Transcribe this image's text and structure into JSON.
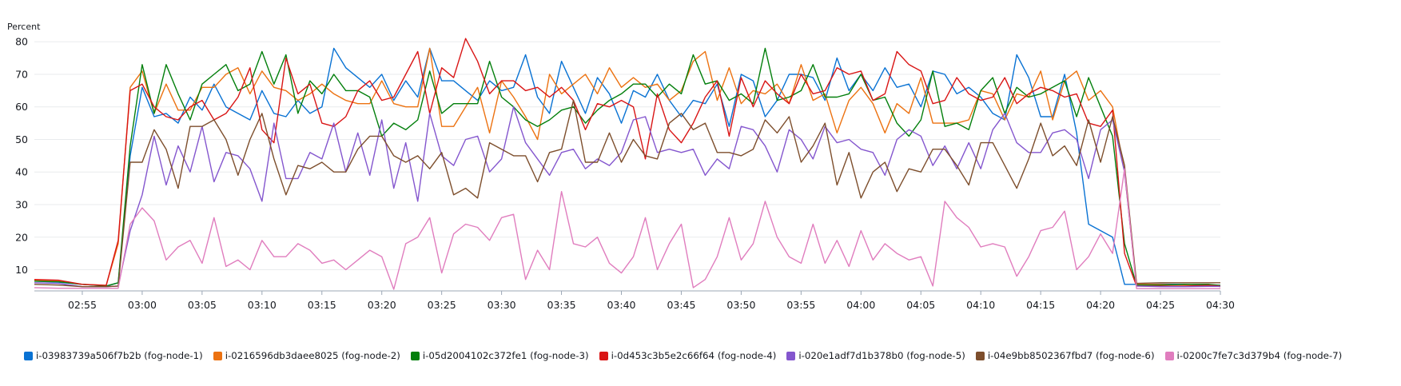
{
  "chart_data": {
    "type": "line",
    "ylabel": "Percent",
    "yticks": [
      10,
      20,
      30,
      40,
      50,
      60,
      70,
      80
    ],
    "ylim": [
      3.5,
      83
    ],
    "xlim": [
      "02:51",
      "04:30"
    ],
    "xticks": [
      "02:55",
      "03:00",
      "03:05",
      "03:10",
      "03:15",
      "03:20",
      "03:25",
      "03:30",
      "03:35",
      "03:40",
      "03:45",
      "03:50",
      "03:55",
      "04:00",
      "04:05",
      "04:10",
      "04:15",
      "04:20",
      "04:25",
      "04:30"
    ],
    "grid": "horizontal",
    "legend": "bottom",
    "x": [
      "02:51",
      "02:53",
      "02:55",
      "02:57",
      "02:58",
      "02:59",
      "03:00",
      "03:01",
      "03:02",
      "03:03",
      "03:04",
      "03:05",
      "03:06",
      "03:07",
      "03:08",
      "03:09",
      "03:10",
      "03:11",
      "03:12",
      "03:13",
      "03:14",
      "03:15",
      "03:16",
      "03:17",
      "03:18",
      "03:19",
      "03:20",
      "03:21",
      "03:22",
      "03:23",
      "03:24",
      "03:25",
      "03:26",
      "03:27",
      "03:28",
      "03:29",
      "03:30",
      "03:31",
      "03:32",
      "03:33",
      "03:34",
      "03:35",
      "03:36",
      "03:37",
      "03:38",
      "03:39",
      "03:40",
      "03:41",
      "03:42",
      "03:43",
      "03:44",
      "03:45",
      "03:46",
      "03:47",
      "03:48",
      "03:49",
      "03:50",
      "03:51",
      "03:52",
      "03:53",
      "03:54",
      "03:55",
      "03:56",
      "03:57",
      "03:58",
      "03:59",
      "04:00",
      "04:01",
      "04:02",
      "04:03",
      "04:04",
      "04:05",
      "04:06",
      "04:07",
      "04:08",
      "04:09",
      "04:10",
      "04:11",
      "04:12",
      "04:13",
      "04:14",
      "04:15",
      "04:16",
      "04:17",
      "04:18",
      "04:19",
      "04:20",
      "04:21",
      "04:22",
      "04:23",
      "04:25",
      "04:27",
      "04:29",
      "04:30"
    ],
    "series": [
      {
        "name": "i-03983739a506f7b2b (fog-node-1)",
        "color": "#0972d3",
        "values": [
          6.5,
          6.2,
          5.5,
          5.0,
          6.0,
          45,
          66,
          57,
          58,
          55,
          63,
          59,
          67,
          60,
          58,
          56,
          65,
          58,
          57,
          62,
          58,
          60,
          78,
          72,
          69,
          66,
          70,
          62,
          68,
          63,
          78,
          68,
          68,
          65,
          62,
          68,
          65,
          66,
          76,
          63,
          58,
          74,
          66,
          58,
          69,
          64,
          55,
          65,
          63,
          70,
          62,
          57,
          62,
          61,
          67,
          54,
          70,
          68,
          57,
          62,
          70,
          70,
          69,
          62,
          75,
          65,
          70,
          65,
          72,
          66,
          67,
          60,
          71,
          70,
          64,
          66,
          63,
          58,
          56,
          76,
          69,
          57,
          57,
          70,
          52,
          24,
          22,
          20,
          5.5,
          5.5,
          5.6,
          5.5,
          5.2,
          5.2
        ]
      },
      {
        "name": "i-0216596db3daee8025 (fog-node-2)",
        "color": "#ec7211",
        "values": [
          6.8,
          6.5,
          5.5,
          5.2,
          18,
          66,
          71,
          58,
          67,
          59,
          59,
          66,
          66,
          70,
          72,
          64,
          71,
          66,
          65,
          62,
          64,
          67,
          64,
          62,
          61,
          61,
          68,
          61,
          60,
          60,
          78,
          54,
          54,
          60,
          66,
          52,
          68,
          63,
          57,
          50,
          70,
          64,
          67,
          70,
          64,
          72,
          66,
          69,
          66,
          67,
          62,
          65,
          74,
          77,
          62,
          72,
          61,
          65,
          64,
          67,
          61,
          73,
          62,
          64,
          52,
          62,
          66,
          61,
          52,
          61,
          58,
          69,
          55,
          55,
          55,
          56,
          65,
          64,
          56,
          64,
          63,
          71,
          56,
          68,
          71,
          62,
          65,
          60,
          40,
          5.5,
          5.5,
          5.4,
          5.5,
          4.8
        ]
      },
      {
        "name": "i-05d2004102c372fe1 (fog-node-3)",
        "color": "#037f0c",
        "values": [
          6.5,
          6.3,
          5.5,
          5.0,
          6.0,
          48,
          73,
          58,
          73,
          64,
          56,
          67,
          70,
          73,
          65,
          67,
          77,
          67,
          76,
          58,
          68,
          64,
          70,
          65,
          65,
          63,
          51,
          55,
          53,
          56,
          71,
          58,
          61,
          61,
          61,
          74,
          63,
          60,
          56,
          54,
          56,
          59,
          60,
          55,
          59,
          62,
          64,
          67,
          67,
          63,
          67,
          64,
          76,
          67,
          68,
          62,
          64,
          61,
          78,
          62,
          63,
          65,
          73,
          63,
          63,
          64,
          70,
          62,
          63,
          55,
          51,
          56,
          71,
          54,
          55,
          53,
          65,
          69,
          58,
          66,
          63,
          64,
          66,
          68,
          57,
          69,
          60,
          51,
          18,
          5.3,
          5.3,
          5.5,
          5.5,
          5.2
        ]
      },
      {
        "name": "i-0d453c3b5e2c66f64 (fog-node-4)",
        "color": "#d91515",
        "values": [
          7.0,
          6.8,
          5.5,
          5.2,
          19,
          65,
          67,
          60,
          57,
          56,
          60,
          62,
          56,
          58,
          63,
          72,
          53,
          49,
          75,
          64,
          67,
          55,
          54,
          57,
          65,
          68,
          62,
          63,
          70,
          77,
          58,
          72,
          69,
          81,
          74,
          64,
          68,
          68,
          65,
          66,
          63,
          66,
          62,
          53,
          61,
          60,
          62,
          60,
          44,
          64,
          53,
          49,
          55,
          63,
          68,
          51,
          69,
          60,
          68,
          64,
          61,
          70,
          64,
          65,
          72,
          70,
          71,
          62,
          64,
          77,
          73,
          71,
          61,
          62,
          69,
          64,
          62,
          63,
          69,
          61,
          64,
          66,
          65,
          63,
          64,
          55,
          54,
          59,
          15,
          5.0,
          5.0,
          5.0,
          5.2,
          5.0
        ]
      },
      {
        "name": "i-020e1adf7d1b378b0 (fog-node-5)",
        "color": "#8456ce",
        "values": [
          6.0,
          5.8,
          4.8,
          4.8,
          5.0,
          22,
          33,
          51,
          36,
          48,
          40,
          54,
          37,
          46,
          45,
          41,
          31,
          55,
          38,
          38,
          46,
          44,
          55,
          40,
          52,
          39,
          56,
          35,
          49,
          31,
          58,
          45,
          42,
          50,
          51,
          40,
          44,
          60,
          49,
          44,
          39,
          46,
          47,
          41,
          44,
          42,
          46,
          56,
          57,
          46,
          47,
          46,
          47,
          39,
          44,
          41,
          54,
          53,
          48,
          40,
          53,
          50,
          44,
          54,
          49,
          50,
          47,
          46,
          39,
          50,
          53,
          51,
          42,
          48,
          41,
          49,
          41,
          53,
          58,
          49,
          46,
          46,
          52,
          53,
          50,
          38,
          53,
          56,
          40,
          5.0,
          4.8,
          4.8,
          4.9,
          4.9
        ]
      },
      {
        "name": "i-04e9bb8502367fbd7 (fog-node-6)",
        "color": "#7d4e2c",
        "values": [
          5.5,
          5.3,
          4.8,
          4.8,
          5.0,
          43,
          43,
          53,
          47,
          35,
          54,
          54,
          56,
          50,
          39,
          50,
          58,
          44,
          33,
          42,
          41,
          43,
          40,
          40,
          47,
          51,
          51,
          45,
          43,
          45,
          41,
          46,
          33,
          35,
          32,
          49,
          47,
          45,
          45,
          37,
          46,
          47,
          62,
          43,
          43,
          52,
          43,
          50,
          45,
          44,
          55,
          58,
          53,
          55,
          46,
          46,
          45,
          47,
          56,
          52,
          57,
          43,
          48,
          55,
          36,
          46,
          32,
          40,
          43,
          34,
          41,
          40,
          47,
          47,
          42,
          36,
          49,
          49,
          42,
          35,
          44,
          55,
          45,
          48,
          42,
          56,
          43,
          57,
          42,
          5.8,
          6.0,
          6.0,
          6.0,
          6.0
        ]
      },
      {
        "name": "i-0200c7fe7c3d379b4 (fog-node-7)",
        "color": "#e07dbe",
        "values": [
          4.5,
          4.3,
          4.3,
          4.3,
          4.3,
          24,
          29,
          25,
          13,
          17,
          19,
          12,
          26,
          11,
          13,
          10,
          19,
          14,
          14,
          18,
          16,
          12,
          13,
          10,
          13,
          16,
          14,
          4,
          18,
          20,
          26,
          9,
          21,
          24,
          23,
          19,
          26,
          27,
          7,
          16,
          10,
          34,
          18,
          17,
          20,
          12,
          9,
          14,
          26,
          10,
          18,
          24,
          4.5,
          7,
          14,
          26,
          13,
          18,
          31,
          20,
          14,
          12,
          24,
          12,
          19,
          11,
          22,
          13,
          18,
          15,
          13,
          14,
          5,
          31,
          26,
          23,
          17,
          18,
          17,
          8,
          14,
          22,
          23,
          28,
          10,
          14,
          21,
          15,
          41,
          4.2,
          4.2,
          4.2,
          4.2,
          4.2
        ]
      }
    ]
  }
}
